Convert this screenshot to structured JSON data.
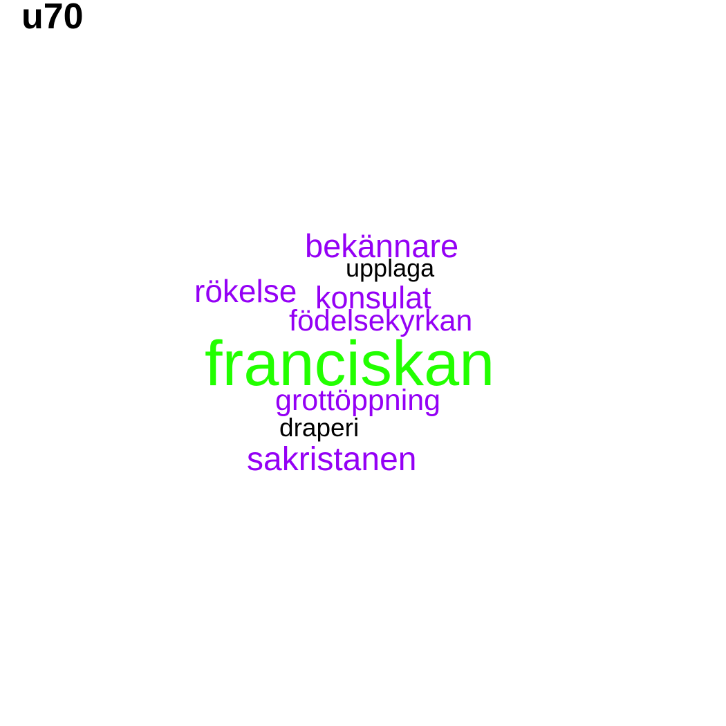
{
  "title": "u70",
  "colors": {
    "primary": "#9400f5",
    "accent": "#22ff00",
    "neutral": "#000000"
  },
  "words": [
    {
      "id": "franciskan",
      "text": "franciskan",
      "color": "#22ff00"
    },
    {
      "id": "bekannare",
      "text": "bekännare",
      "color": "#9400f5"
    },
    {
      "id": "upplaga",
      "text": "upplaga",
      "color": "#000000"
    },
    {
      "id": "rokelse",
      "text": "rökelse",
      "color": "#9400f5"
    },
    {
      "id": "konsulat",
      "text": "konsulat",
      "color": "#9400f5"
    },
    {
      "id": "fodelsekyrkan",
      "text": "födelsekyrkan",
      "color": "#9400f5"
    },
    {
      "id": "grottoppning",
      "text": "grottöppning",
      "color": "#9400f5"
    },
    {
      "id": "draperi",
      "text": "draperi",
      "color": "#000000"
    },
    {
      "id": "sakristanen",
      "text": "sakristanen",
      "color": "#9400f5"
    }
  ]
}
